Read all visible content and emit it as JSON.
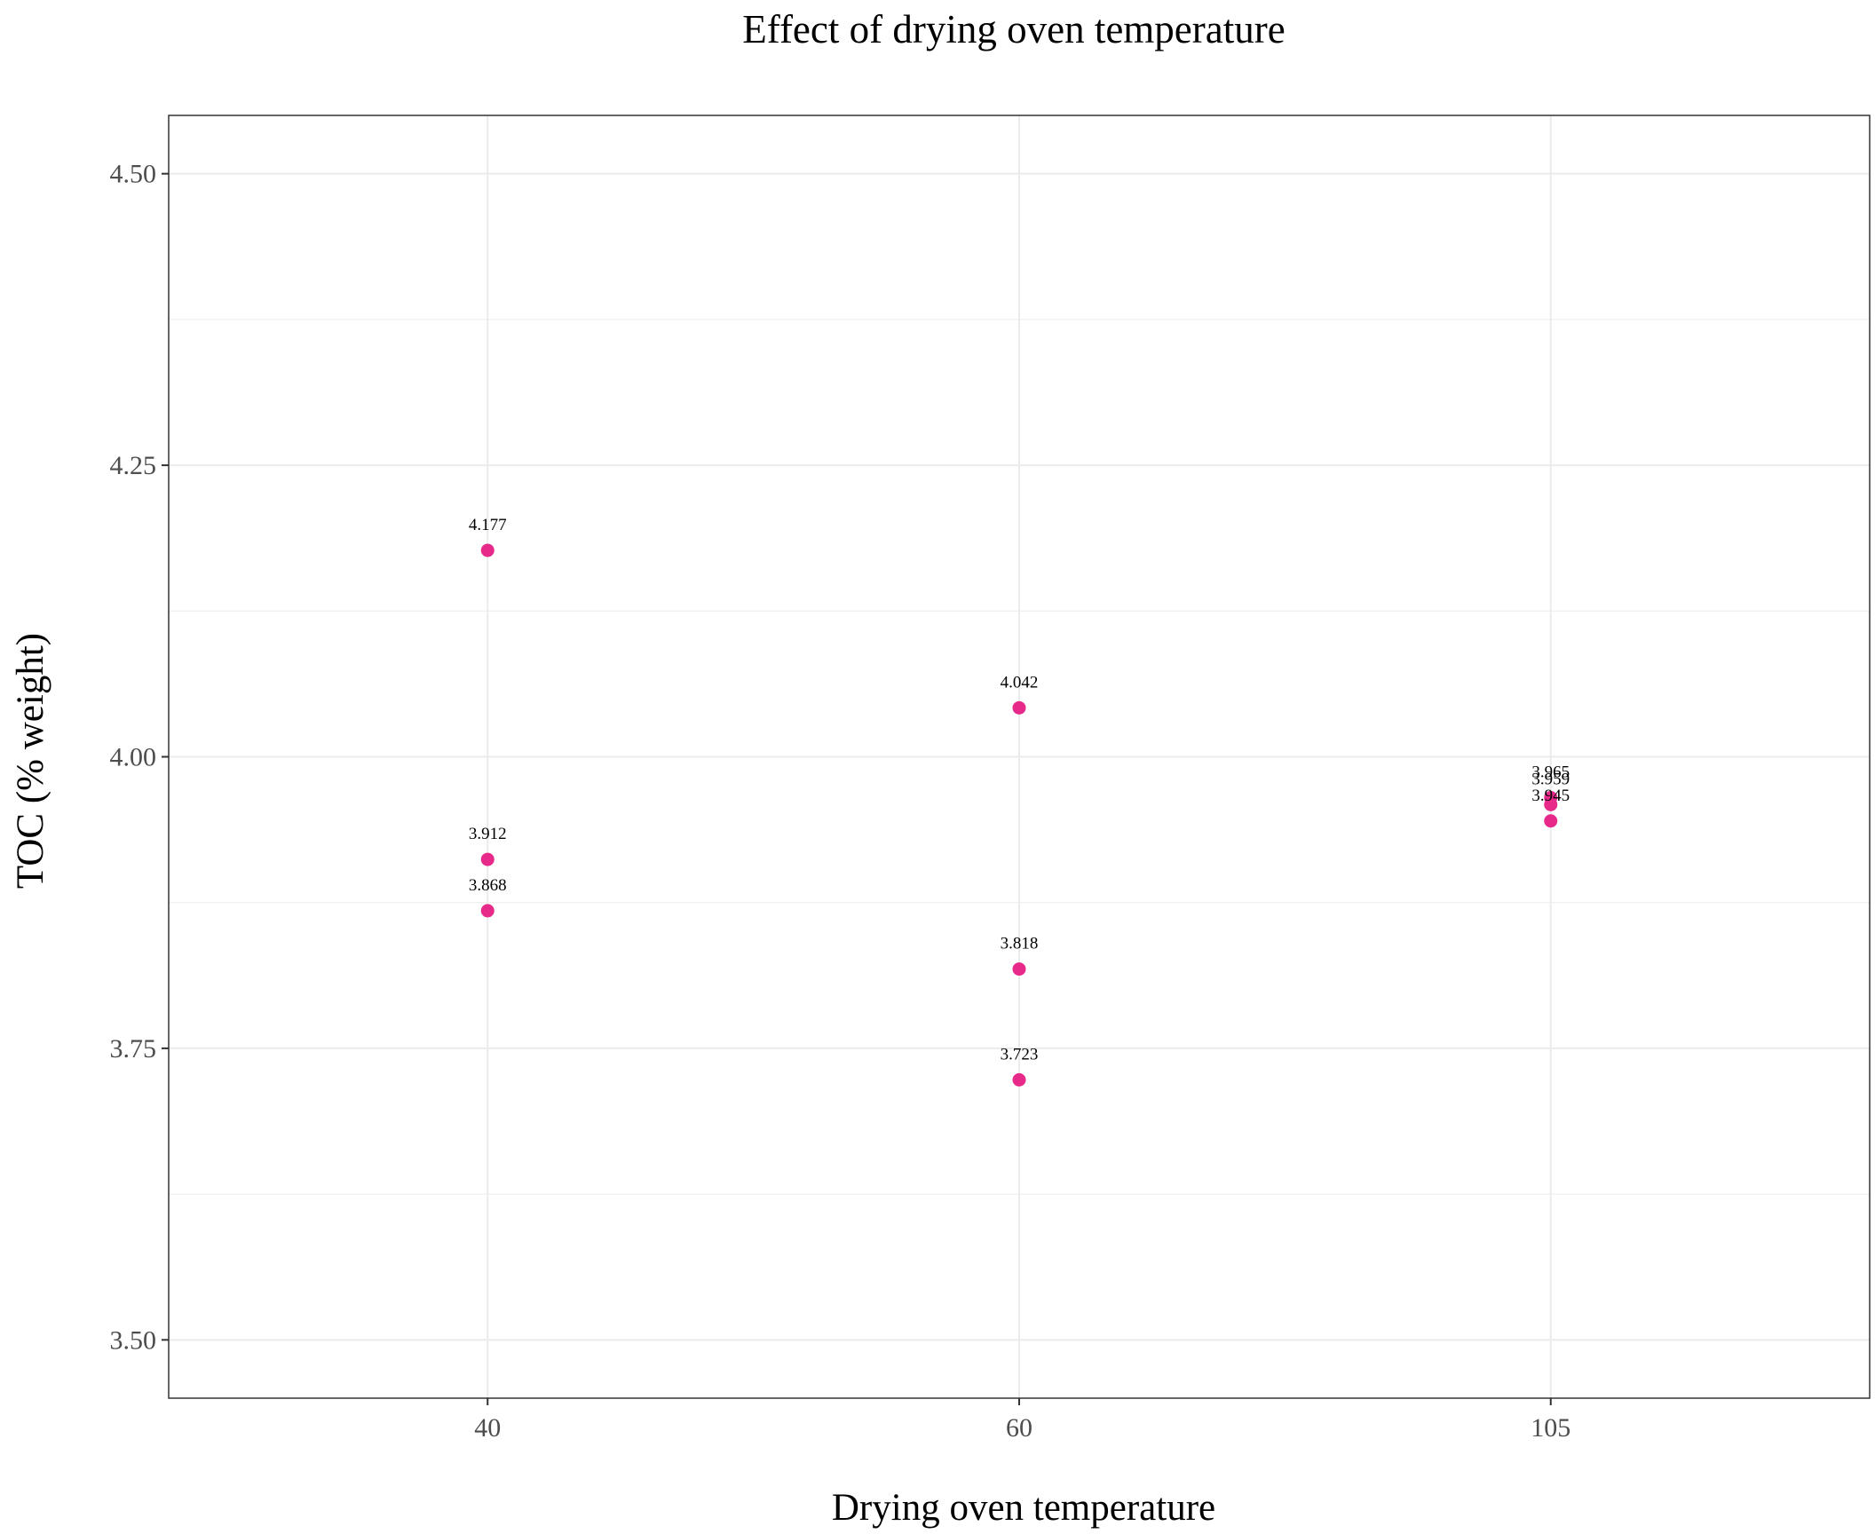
{
  "chart_data": {
    "type": "scatter",
    "title": "Effect of drying oven temperature",
    "xlabel": "Drying oven temperature",
    "ylabel": "TOC (% weight)",
    "categories": [
      "40",
      "60",
      "105"
    ],
    "ylim": [
      3.45,
      4.55
    ],
    "y_ticks": [
      3.5,
      3.75,
      4.0,
      4.25,
      4.5
    ],
    "y_tick_labels": [
      "3.50",
      "3.75",
      "4.00",
      "4.25",
      "4.50"
    ],
    "grid": true,
    "legend": "none",
    "point_color": "#e7298a",
    "points": [
      {
        "x": "40",
        "y": 4.177,
        "label": "4.177"
      },
      {
        "x": "40",
        "y": 3.912,
        "label": "3.912"
      },
      {
        "x": "40",
        "y": 3.868,
        "label": "3.868"
      },
      {
        "x": "60",
        "y": 4.042,
        "label": "4.042"
      },
      {
        "x": "60",
        "y": 3.818,
        "label": "3.818"
      },
      {
        "x": "60",
        "y": 3.723,
        "label": "3.723"
      },
      {
        "x": "105",
        "y": 3.965,
        "label": "3.965"
      },
      {
        "x": "105",
        "y": 3.959,
        "label": "3.959"
      },
      {
        "x": "105",
        "y": 3.945,
        "label": "3.945"
      }
    ]
  }
}
